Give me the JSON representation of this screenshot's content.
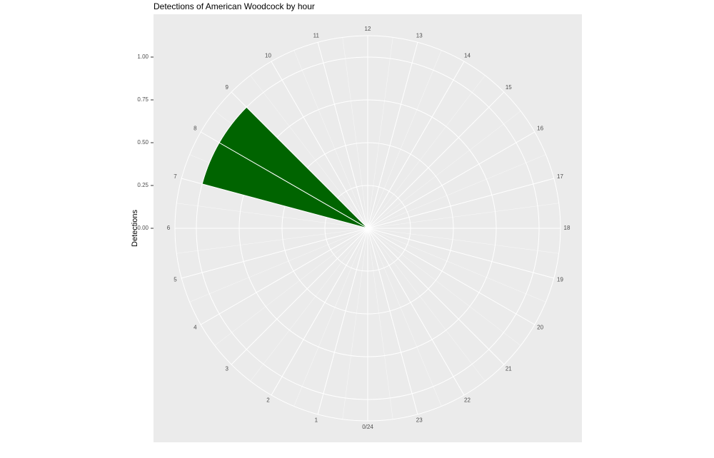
{
  "chart_data": {
    "type": "polar-bar",
    "title": "Detections of American Woodcock by hour",
    "y_label": "Detections",
    "categories": [
      "0/24",
      "1",
      "2",
      "3",
      "4",
      "5",
      "6",
      "7",
      "8",
      "9",
      "10",
      "11",
      "12",
      "13",
      "14",
      "15",
      "16",
      "17",
      "18",
      "19",
      "20",
      "21",
      "22",
      "23"
    ],
    "values": [
      0,
      0,
      0,
      0,
      0,
      0,
      0,
      1,
      1,
      0,
      0,
      0,
      0,
      0,
      0,
      0,
      0,
      0,
      0,
      0,
      0,
      0,
      0,
      0
    ],
    "color": "#006400",
    "ylim": [
      0,
      1.125
    ],
    "yticks": [
      {
        "value": 0,
        "label": "0.00"
      },
      {
        "value": 0.25,
        "label": "0.25"
      },
      {
        "value": 0.5,
        "label": "0.50"
      },
      {
        "value": 0.75,
        "label": "0.75"
      },
      {
        "value": 1,
        "label": "1.00"
      }
    ],
    "grid": true
  }
}
